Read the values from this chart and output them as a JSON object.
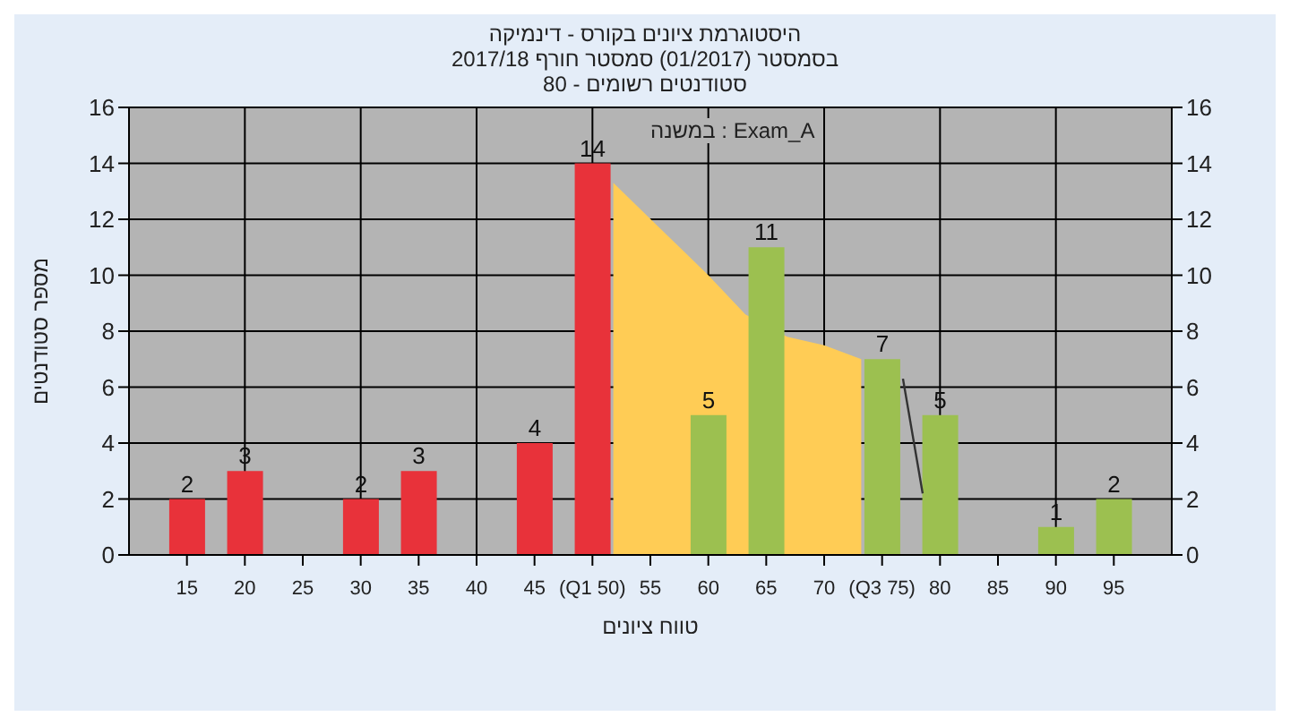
{
  "chart_data": {
    "type": "bar",
    "title": "היסטוגרמת ציונים בקורס - דינמיקה",
    "subtitle": "בסמסטר  (01/2017)  סמסטר חורף 2017/18\nסטודנטים רשומים - 80",
    "xlabel": "טווח ציונים",
    "ylabel": "מספר סטודנטים",
    "annotations": [
      "במשנה : Exam_A"
    ],
    "x": [
      15,
      20,
      30,
      35,
      45,
      50,
      60,
      65,
      75,
      80,
      90,
      95
    ],
    "series": [
      {
        "type": "area",
        "color": "#ffcc55",
        "x": [
          51.8,
          60,
          63.2,
          66.8,
          70,
          73.2
        ],
        "values": [
          13.3,
          10,
          8.6,
          7.8,
          7.5,
          7
        ]
      },
      {
        "type": "line",
        "color": "#333333",
        "x": [
          76.8,
          78.5
        ],
        "values": [
          6.3,
          2.2
        ]
      },
      {
        "colors": [
          "#e8323a",
          "#e8323a",
          "#e8323a",
          "#e8323a",
          "#e8323a",
          "#e8323a",
          "#9cc050",
          "#9cc050",
          "#9cc050",
          "#9cc050",
          "#9cc050",
          "#9cc050"
        ],
        "values": [
          2,
          3,
          2,
          3,
          4,
          14,
          5,
          11,
          7,
          5,
          1,
          2
        ],
        "value_labels": [
          "2",
          "3",
          "2",
          "3",
          "4",
          "14",
          "5",
          "11",
          "7",
          "5",
          "1",
          "2"
        ]
      }
    ],
    "xlim": [
      10,
      100
    ],
    "xticks": [
      15,
      20,
      25,
      30,
      35,
      40,
      45,
      {
        "value": 50,
        "label": "(Q1 50)"
      },
      55,
      60,
      65,
      70,
      {
        "value": 75,
        "label": "(Q3 75)"
      },
      80,
      85,
      90,
      95
    ],
    "ylim": [
      0,
      16
    ],
    "yticks": [
      0,
      2,
      4,
      6,
      8,
      10,
      12,
      14,
      16
    ],
    "y2lim": [
      0,
      16
    ],
    "y2ticks": [
      0,
      2,
      4,
      6,
      8,
      10,
      12,
      14,
      16
    ],
    "grid": true
  }
}
